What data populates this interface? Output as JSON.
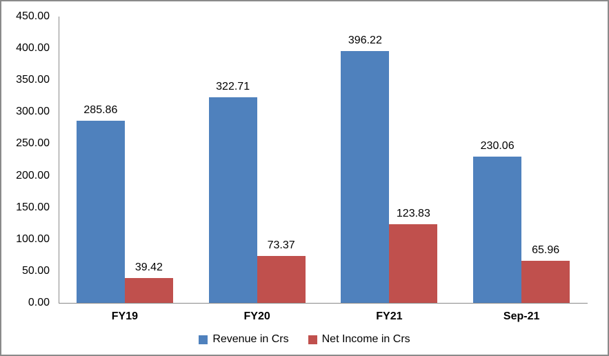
{
  "chart_data": {
    "type": "bar",
    "title": "",
    "xlabel": "",
    "ylabel": "",
    "categories": [
      "FY19",
      "FY20",
      "FY21",
      "Sep-21"
    ],
    "series": [
      {
        "name": "Revenue in Crs",
        "color": "#4F81BD",
        "values": [
          285.86,
          322.71,
          396.22,
          230.06
        ]
      },
      {
        "name": "Net Income in Crs",
        "color": "#C0504D",
        "values": [
          39.42,
          73.37,
          123.83,
          65.96
        ]
      }
    ],
    "ylim": [
      0,
      450
    ],
    "ytick_step": 50,
    "ytick_labels": [
      "0.00",
      "50.00",
      "100.00",
      "150.00",
      "200.00",
      "250.00",
      "300.00",
      "350.00",
      "400.00",
      "450.00"
    ],
    "grid": false,
    "legend_position": "bottom",
    "data_labels": true
  },
  "colors": {
    "axis": "#898989",
    "frame_border": "#8A8A8A",
    "background": "#FFFFFF",
    "text": "#000000"
  }
}
